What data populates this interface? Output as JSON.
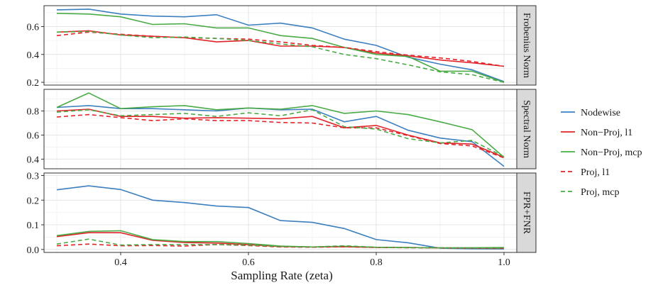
{
  "chart_data": {
    "type": "line",
    "xlabel": "Sampling Rate (zeta)",
    "xlim": [
      0.28,
      1.02
    ],
    "x_ticks": [
      0.4,
      0.6,
      0.8,
      1.0
    ],
    "x_tick_labels": [
      "0.4",
      "0.6",
      "0.8",
      "1.0"
    ],
    "x": [
      0.3,
      0.35,
      0.4,
      0.45,
      0.5,
      0.55,
      0.6,
      0.65,
      0.7,
      0.75,
      0.8,
      0.85,
      0.9,
      0.95,
      1.0
    ],
    "grid": true,
    "legend_position": "right",
    "legend": [
      {
        "name": "Nodewise",
        "color": "#3c7fbf",
        "dash": "solid"
      },
      {
        "name": "Non−Proj, l1",
        "color": "#e0252a",
        "dash": "solid"
      },
      {
        "name": "Non−Proj, mcp",
        "color": "#4aab46",
        "dash": "solid"
      },
      {
        "name": "Proj, l1",
        "color": "#e0252a",
        "dash": "dashed"
      },
      {
        "name": "Proj, mcp",
        "color": "#4aab46",
        "dash": "dashed"
      }
    ],
    "panels": [
      {
        "strip": "Frobenius Norm",
        "ylim": [
          0.18,
          0.75
        ],
        "y_ticks": [
          0.2,
          0.4,
          0.6
        ],
        "y_tick_labels": [
          "0.2",
          "0.4",
          "0.6"
        ],
        "series": [
          {
            "name": "Nodewise",
            "values": [
              0.72,
              0.725,
              0.69,
              0.675,
              0.67,
              0.685,
              0.61,
              0.625,
              0.59,
              0.51,
              0.465,
              0.38,
              0.33,
              0.29,
              0.205
            ]
          },
          {
            "name": "Non−Proj, l1",
            "values": [
              0.56,
              0.57,
              0.54,
              0.53,
              0.52,
              0.49,
              0.5,
              0.46,
              0.46,
              0.45,
              0.41,
              0.39,
              0.36,
              0.34,
              0.315
            ]
          },
          {
            "name": "Non−Proj, mcp",
            "values": [
              0.695,
              0.69,
              0.67,
              0.615,
              0.62,
              0.59,
              0.59,
              0.535,
              0.515,
              0.45,
              0.4,
              0.385,
              0.28,
              0.28,
              0.2
            ]
          },
          {
            "name": "Proj, l1",
            "values": [
              0.535,
              0.56,
              0.545,
              0.53,
              0.52,
              0.515,
              0.51,
              0.49,
              0.465,
              0.45,
              0.42,
              0.395,
              0.375,
              0.35,
              0.315
            ]
          },
          {
            "name": "Proj, mcp",
            "values": [
              0.56,
              0.565,
              0.54,
              0.52,
              0.525,
              0.515,
              0.5,
              0.475,
              0.455,
              0.4,
              0.37,
              0.325,
              0.275,
              0.255,
              0.2
            ]
          }
        ]
      },
      {
        "strip": "Spectral Norm",
        "ylim": [
          0.32,
          0.98
        ],
        "y_ticks": [
          0.4,
          0.6,
          0.8
        ],
        "y_tick_labels": [
          "0.4",
          "0.6",
          "0.8"
        ],
        "series": [
          {
            "name": "Nodewise",
            "values": [
              0.83,
              0.845,
              0.82,
              0.82,
              0.81,
              0.8,
              0.825,
              0.81,
              0.815,
              0.71,
              0.755,
              0.64,
              0.575,
              0.545,
              0.34
            ]
          },
          {
            "name": "Non−Proj, l1",
            "values": [
              0.8,
              0.815,
              0.755,
              0.755,
              0.74,
              0.745,
              0.74,
              0.735,
              0.755,
              0.66,
              0.68,
              0.6,
              0.535,
              0.525,
              0.415
            ]
          },
          {
            "name": "Non−Proj, mcp",
            "values": [
              0.83,
              0.95,
              0.82,
              0.835,
              0.845,
              0.81,
              0.825,
              0.815,
              0.845,
              0.78,
              0.8,
              0.77,
              0.71,
              0.645,
              0.415
            ]
          },
          {
            "name": "Proj, l1",
            "values": [
              0.75,
              0.77,
              0.745,
              0.72,
              0.735,
              0.72,
              0.72,
              0.705,
              0.7,
              0.66,
              0.66,
              0.595,
              0.53,
              0.51,
              0.41
            ]
          },
          {
            "name": "Proj, mcp",
            "values": [
              0.79,
              0.81,
              0.76,
              0.77,
              0.78,
              0.755,
              0.785,
              0.76,
              0.81,
              0.67,
              0.65,
              0.57,
              0.535,
              0.555,
              0.42
            ]
          }
        ]
      },
      {
        "strip": "FPR+FNR",
        "ylim": [
          -0.012,
          0.31
        ],
        "y_ticks": [
          0.0,
          0.1,
          0.2,
          0.3
        ],
        "y_tick_labels": [
          "0.0",
          "0.1",
          "0.2",
          "0.3"
        ],
        "series": [
          {
            "name": "Nodewise",
            "values": [
              0.242,
              0.258,
              0.243,
              0.2,
              0.19,
              0.176,
              0.17,
              0.117,
              0.11,
              0.085,
              0.04,
              0.027,
              0.005,
              0.003,
              0.002
            ]
          },
          {
            "name": "Non−Proj, l1",
            "values": [
              0.052,
              0.068,
              0.068,
              0.037,
              0.028,
              0.026,
              0.02,
              0.012,
              0.01,
              0.011,
              0.008,
              0.008,
              0.006,
              0.006,
              0.005
            ]
          },
          {
            "name": "Non−Proj, mcp",
            "values": [
              0.056,
              0.073,
              0.076,
              0.04,
              0.032,
              0.032,
              0.024,
              0.014,
              0.01,
              0.013,
              0.009,
              0.008,
              0.006,
              0.007,
              0.008
            ]
          },
          {
            "name": "Proj, l1",
            "values": [
              0.015,
              0.022,
              0.015,
              0.016,
              0.014,
              0.02,
              0.016,
              0.01,
              0.009,
              0.011,
              0.008,
              0.007,
              0.006,
              0.005,
              0.004
            ]
          },
          {
            "name": "Proj, mcp",
            "values": [
              0.022,
              0.042,
              0.018,
              0.02,
              0.02,
              0.02,
              0.018,
              0.012,
              0.01,
              0.015,
              0.009,
              0.007,
              0.007,
              0.006,
              0.005
            ]
          }
        ]
      }
    ]
  }
}
